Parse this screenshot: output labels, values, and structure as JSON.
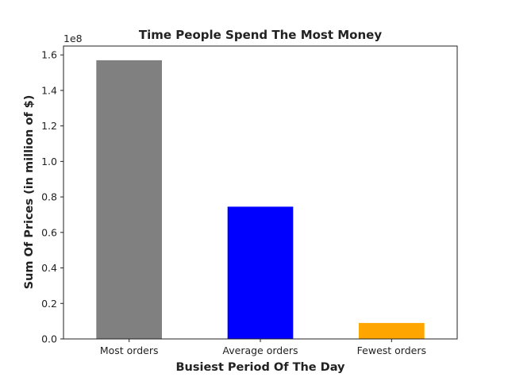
{
  "chart_data": {
    "type": "bar",
    "title": "Time People Spend The Most Money",
    "xlabel": "Busiest Period Of The Day",
    "ylabel": "Sum Of Prices (in million of $)",
    "categories": [
      "Most orders",
      "Average orders",
      "Fewest orders"
    ],
    "values": [
      157000000,
      74500000,
      9000000
    ],
    "colors": [
      "#808080",
      "#0000ff",
      "#ffa500"
    ],
    "ylim": [
      0,
      165000000
    ],
    "y_tick_values": [
      0,
      20000000,
      40000000,
      60000000,
      80000000,
      100000000,
      120000000,
      140000000,
      160000000
    ],
    "y_tick_labels": [
      "0.0",
      "0.2",
      "0.4",
      "0.6",
      "0.8",
      "1.0",
      "1.2",
      "1.4",
      "1.6"
    ],
    "y_offset_label": "1e8",
    "grid": false,
    "legend": "none"
  }
}
